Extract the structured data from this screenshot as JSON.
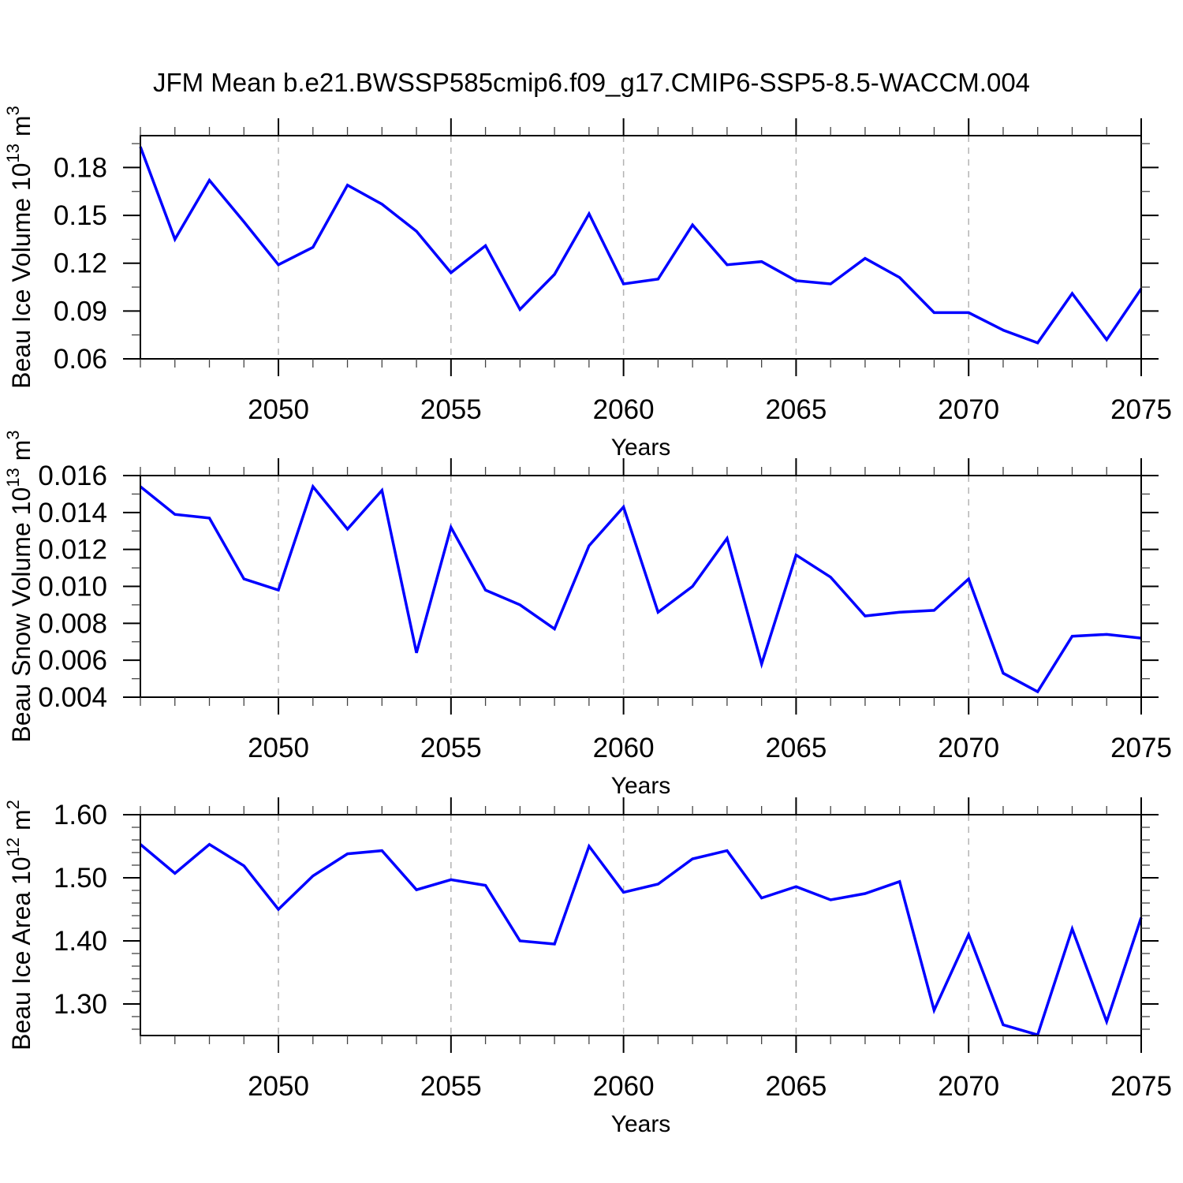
{
  "title": "JFM Mean b.e21.BWSSP585cmip6.f09_g17.CMIP6-SSP5-8.5-WACCM.004",
  "colors": {
    "line": "#0000ff",
    "frame": "#000000",
    "major_tick": "#000000",
    "minor_tick": "#444444",
    "grid": "#b3b3b3",
    "text": "#000000",
    "background": "#ffffff"
  },
  "chart_data": [
    {
      "type": "line",
      "name": "beau-ice-volume",
      "ylabel": "Beau Ice Volume 10^13 m^3",
      "ylabel_parts": [
        {
          "t": "Beau Ice Volume 10"
        },
        {
          "t": "13",
          "sup": true
        },
        {
          "t": " m"
        },
        {
          "t": "3",
          "sup": true
        }
      ],
      "xlabel": "Years",
      "x": [
        2046,
        2047,
        2048,
        2049,
        2050,
        2051,
        2052,
        2053,
        2054,
        2055,
        2056,
        2057,
        2058,
        2059,
        2060,
        2061,
        2062,
        2063,
        2064,
        2065,
        2066,
        2067,
        2068,
        2069,
        2070,
        2071,
        2072,
        2073,
        2074,
        2075
      ],
      "values": [
        0.193,
        0.135,
        0.172,
        0.146,
        0.119,
        0.13,
        0.169,
        0.157,
        0.14,
        0.114,
        0.131,
        0.091,
        0.113,
        0.151,
        0.107,
        0.11,
        0.144,
        0.119,
        0.121,
        0.109,
        0.107,
        0.123,
        0.111,
        0.089,
        0.089,
        0.078,
        0.07,
        0.101,
        0.072,
        0.104
      ],
      "xlim": [
        2046,
        2075
      ],
      "ylim": [
        0.06,
        0.2
      ],
      "yticks": [
        0.06,
        0.09,
        0.12,
        0.15,
        0.18
      ],
      "yticks_minor": [
        0.075,
        0.105,
        0.135,
        0.165,
        0.195
      ],
      "ytick_decimals": 2,
      "xticks": [
        2050,
        2055,
        2060,
        2065,
        2070,
        2075
      ],
      "grid": "vertical-dashed",
      "legend": "none"
    },
    {
      "type": "line",
      "name": "beau-snow-volume",
      "ylabel": "Beau Snow Volume 10^13 m^3",
      "ylabel_parts": [
        {
          "t": "Beau Snow Volume 10"
        },
        {
          "t": "13",
          "sup": true
        },
        {
          "t": " m"
        },
        {
          "t": "3",
          "sup": true
        }
      ],
      "xlabel": "Years",
      "x": [
        2046,
        2047,
        2048,
        2049,
        2050,
        2051,
        2052,
        2053,
        2054,
        2055,
        2056,
        2057,
        2058,
        2059,
        2060,
        2061,
        2062,
        2063,
        2064,
        2065,
        2066,
        2067,
        2068,
        2069,
        2070,
        2071,
        2072,
        2073,
        2074,
        2075
      ],
      "values": [
        0.0154,
        0.0139,
        0.0137,
        0.0104,
        0.0098,
        0.0154,
        0.0131,
        0.0152,
        0.0064,
        0.0132,
        0.0098,
        0.009,
        0.0077,
        0.0122,
        0.0143,
        0.0086,
        0.01,
        0.0126,
        0.0058,
        0.0117,
        0.0105,
        0.0084,
        0.0086,
        0.0087,
        0.0104,
        0.0053,
        0.0043,
        0.0073,
        0.0074,
        0.0072
      ],
      "xlim": [
        2046,
        2075
      ],
      "ylim": [
        0.004,
        0.016
      ],
      "yticks": [
        0.004,
        0.006,
        0.008,
        0.01,
        0.012,
        0.014,
        0.016
      ],
      "yticks_minor": [
        0.005,
        0.007,
        0.009,
        0.011,
        0.013,
        0.015
      ],
      "ytick_decimals": 3,
      "xticks": [
        2050,
        2055,
        2060,
        2065,
        2070,
        2075
      ],
      "grid": "vertical-dashed",
      "legend": "none"
    },
    {
      "type": "line",
      "name": "beau-ice-area",
      "ylabel": "Beau Ice Area 10^12 m^2",
      "ylabel_parts": [
        {
          "t": "Beau Ice Area 10"
        },
        {
          "t": "12",
          "sup": true
        },
        {
          "t": " m"
        },
        {
          "t": "2",
          "sup": true
        }
      ],
      "xlabel": "Years",
      "x": [
        2046,
        2047,
        2048,
        2049,
        2050,
        2051,
        2052,
        2053,
        2054,
        2055,
        2056,
        2057,
        2058,
        2059,
        2060,
        2061,
        2062,
        2063,
        2064,
        2065,
        2066,
        2067,
        2068,
        2069,
        2070,
        2071,
        2072,
        2073,
        2074,
        2075
      ],
      "values": [
        1.553,
        1.507,
        1.553,
        1.519,
        1.45,
        1.503,
        1.538,
        1.543,
        1.481,
        1.497,
        1.488,
        1.4,
        1.395,
        1.55,
        1.477,
        1.49,
        1.53,
        1.543,
        1.468,
        1.486,
        1.465,
        1.475,
        1.494,
        1.29,
        1.41,
        1.267,
        1.251,
        1.419,
        1.272,
        1.437
      ],
      "xlim": [
        2046,
        2075
      ],
      "ylim": [
        1.25,
        1.6
      ],
      "yticks": [
        1.3,
        1.4,
        1.5,
        1.6
      ],
      "yticks_minor": [
        1.26,
        1.28,
        1.32,
        1.34,
        1.36,
        1.38,
        1.42,
        1.44,
        1.46,
        1.48,
        1.52,
        1.54,
        1.56,
        1.58
      ],
      "ytick_decimals": 2,
      "xticks": [
        2050,
        2055,
        2060,
        2065,
        2070,
        2075
      ],
      "grid": "vertical-dashed",
      "legend": "none"
    }
  ]
}
